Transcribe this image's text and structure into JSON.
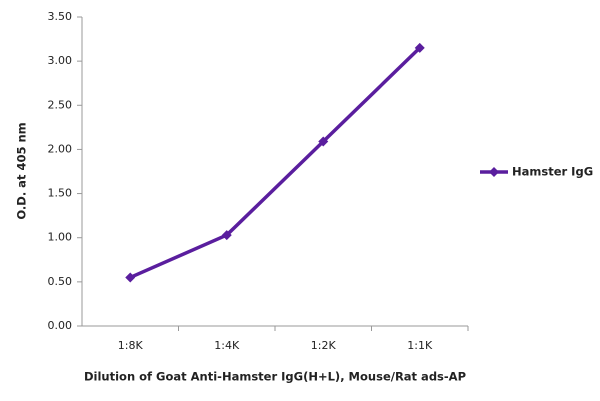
{
  "chart_data": {
    "type": "line",
    "x_label": "Dilution of Goat Anti-Hamster IgG(H+L), Mouse/Rat ads-AP",
    "y_label": "O.D. at 405 nm",
    "categories": [
      "1:8K",
      "1:4K",
      "1:2K",
      "1:1K"
    ],
    "series": [
      {
        "name": "Hamster IgG",
        "color": "#5a1e9e",
        "values": [
          0.55,
          1.03,
          2.09,
          3.15
        ]
      }
    ],
    "ylim": [
      0,
      3.5
    ],
    "yticks": [
      {
        "value": 0,
        "label": "0.00"
      },
      {
        "value": 0.5,
        "label": "0.50"
      },
      {
        "value": 1,
        "label": "1.00"
      },
      {
        "value": 1.5,
        "label": "1.50"
      },
      {
        "value": 2,
        "label": "2.00"
      },
      {
        "value": 2.5,
        "label": "2.50"
      },
      {
        "value": 3,
        "label": "3.00"
      },
      {
        "value": 3.5,
        "label": "3.50"
      }
    ],
    "legend": "right"
  }
}
